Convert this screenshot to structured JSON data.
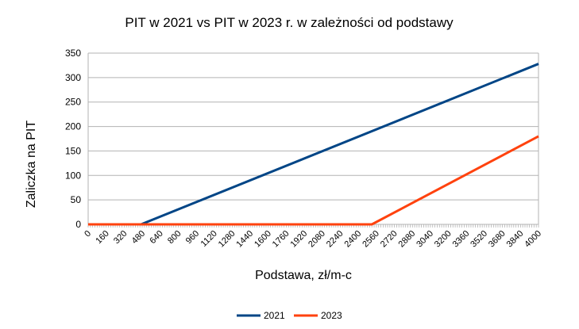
{
  "chart_data": {
    "type": "line",
    "title": "PIT w 2021 vs PIT w 2023 r. w zależności od podstawy",
    "xlabel": "Podstawa, zł/m-c",
    "ylabel": "Zaliczka na PIT",
    "xlim": [
      0,
      4000
    ],
    "ylim": [
      0,
      350
    ],
    "x_tick_labels": [
      "0",
      "160",
      "320",
      "480",
      "640",
      "800",
      "960",
      "1120",
      "1280",
      "1440",
      "1600",
      "1760",
      "1920",
      "2080",
      "2240",
      "2400",
      "2560",
      "2720",
      "2880",
      "3040",
      "3200",
      "3360",
      "3520",
      "3680",
      "3840",
      "4000"
    ],
    "y_ticks": [
      0,
      50,
      100,
      150,
      200,
      250,
      300,
      350
    ],
    "grid": true,
    "legend_position": "bottom",
    "series": [
      {
        "name": "2021",
        "color": "#004586",
        "x": [
          0,
          470,
          4000
        ],
        "y": [
          0,
          0,
          328
        ]
      },
      {
        "name": "2023",
        "color": "#ff420e",
        "x": [
          0,
          2520,
          4000
        ],
        "y": [
          0,
          0,
          180
        ]
      }
    ]
  }
}
